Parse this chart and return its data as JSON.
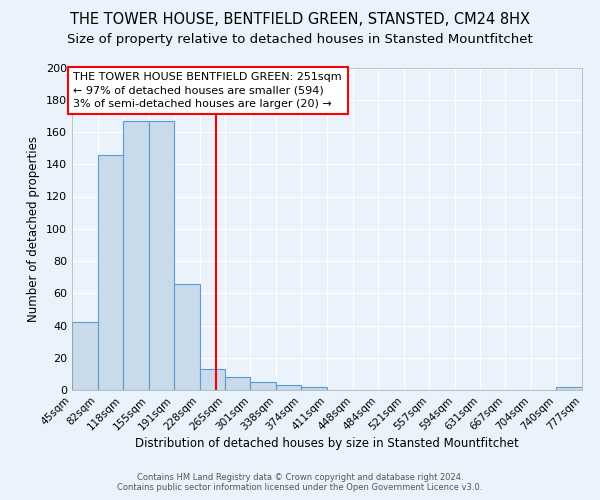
{
  "title": "THE TOWER HOUSE, BENTFIELD GREEN, STANSTED, CM24 8HX",
  "subtitle": "Size of property relative to detached houses in Stansted Mountfitchet",
  "xlabel": "Distribution of detached houses by size in Stansted Mountfitchet",
  "ylabel": "Number of detached properties",
  "bin_edges": [
    45,
    82,
    118,
    155,
    191,
    228,
    265,
    301,
    338,
    374,
    411,
    448,
    484,
    521,
    557,
    594,
    631,
    667,
    704,
    740,
    777
  ],
  "bar_heights": [
    42,
    146,
    167,
    167,
    66,
    13,
    8,
    5,
    3,
    2,
    0,
    0,
    0,
    0,
    0,
    0,
    0,
    0,
    0,
    2
  ],
  "bar_color": "#c9daea",
  "bar_edge_color": "#5b9bd5",
  "reference_line_x": 251,
  "reference_line_color": "red",
  "annotation_line1": "THE TOWER HOUSE BENTFIELD GREEN: 251sqm",
  "annotation_line2": "← 97% of detached houses are smaller (594)",
  "annotation_line3": "3% of semi-detached houses are larger (20) →",
  "annotation_box_color": "white",
  "annotation_box_edge_color": "red",
  "ylim": [
    0,
    200
  ],
  "yticks": [
    0,
    20,
    40,
    60,
    80,
    100,
    120,
    140,
    160,
    180,
    200
  ],
  "footer1": "Contains HM Land Registry data © Crown copyright and database right 2024.",
  "footer2": "Contains public sector information licensed under the Open Government Licence v3.0.",
  "background_color": "#eaf3fb",
  "plot_bg_color": "#eaf3fb",
  "grid_color": "white",
  "title_fontsize": 10.5,
  "subtitle_fontsize": 9.5,
  "xlabel_fontsize": 8.5,
  "ylabel_fontsize": 8.5,
  "annotation_fontsize": 8,
  "tick_labels": [
    "45sqm",
    "82sqm",
    "118sqm",
    "155sqm",
    "191sqm",
    "228sqm",
    "265sqm",
    "301sqm",
    "338sqm",
    "374sqm",
    "411sqm",
    "448sqm",
    "484sqm",
    "521sqm",
    "557sqm",
    "594sqm",
    "631sqm",
    "667sqm",
    "704sqm",
    "740sqm",
    "777sqm"
  ]
}
